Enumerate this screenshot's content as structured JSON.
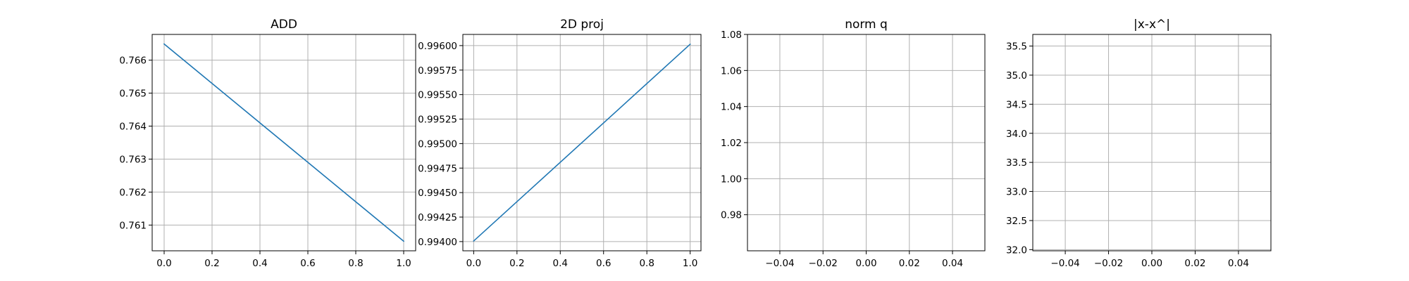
{
  "colors": {
    "series": "#1f77b4"
  },
  "chart_data": [
    {
      "type": "line",
      "title": "ADD",
      "xlabel": "",
      "ylabel": "",
      "grid": true,
      "xlim": [
        -0.05,
        1.05
      ],
      "ylim": [
        0.76022,
        0.76678
      ],
      "xticks": [
        0.0,
        0.2,
        0.4,
        0.6,
        0.8,
        1.0
      ],
      "xtick_labels": [
        "0.0",
        "0.2",
        "0.4",
        "0.6",
        "0.8",
        "1.0"
      ],
      "yticks": [
        0.761,
        0.762,
        0.763,
        0.764,
        0.765,
        0.766
      ],
      "ytick_labels": [
        "0.761",
        "0.762",
        "0.763",
        "0.764",
        "0.765",
        "0.766"
      ],
      "series": [
        {
          "x": [
            0,
            1
          ],
          "y": [
            0.76649,
            0.76051
          ]
        }
      ]
    },
    {
      "type": "line",
      "title": "2D proj",
      "xlabel": "",
      "ylabel": "",
      "grid": true,
      "xlim": [
        -0.05,
        1.05
      ],
      "ylim": [
        0.993906,
        0.996114
      ],
      "xticks": [
        0.0,
        0.2,
        0.4,
        0.6,
        0.8,
        1.0
      ],
      "xtick_labels": [
        "0.0",
        "0.2",
        "0.4",
        "0.6",
        "0.8",
        "1.0"
      ],
      "yticks": [
        0.994,
        0.99425,
        0.9945,
        0.99475,
        0.995,
        0.99525,
        0.9955,
        0.99575,
        0.996
      ],
      "ytick_labels": [
        "0.99400",
        "0.99425",
        "0.99450",
        "0.99475",
        "0.99500",
        "0.99525",
        "0.99550",
        "0.99575",
        "0.99600"
      ],
      "series": [
        {
          "x": [
            0,
            1
          ],
          "y": [
            0.994006,
            0.996014
          ]
        }
      ]
    },
    {
      "type": "line",
      "title": "norm q",
      "xlabel": "",
      "ylabel": "",
      "grid": true,
      "xlim": [
        -0.055,
        0.055
      ],
      "ylim": [
        0.96,
        1.08
      ],
      "xticks": [
        -0.04,
        -0.02,
        0.0,
        0.02,
        0.04
      ],
      "xtick_labels": [
        "−0.04",
        "−0.02",
        "0.00",
        "0.02",
        "0.04"
      ],
      "yticks": [
        0.98,
        1.0,
        1.02,
        1.04,
        1.06,
        1.08
      ],
      "ytick_labels": [
        "0.98",
        "1.00",
        "1.02",
        "1.04",
        "1.06",
        "1.08"
      ],
      "series": []
    },
    {
      "type": "line",
      "title": "|x-x^|",
      "xlabel": "",
      "ylabel": "",
      "grid": true,
      "xlim": [
        -0.055,
        0.055
      ],
      "ylim": [
        31.98,
        35.7
      ],
      "xticks": [
        -0.04,
        -0.02,
        0.0,
        0.02,
        0.04
      ],
      "xtick_labels": [
        "−0.04",
        "−0.02",
        "0.00",
        "0.02",
        "0.04"
      ],
      "yticks": [
        32.0,
        32.5,
        33.0,
        33.5,
        34.0,
        34.5,
        35.0,
        35.5
      ],
      "ytick_labels": [
        "32.0",
        "32.5",
        "33.0",
        "33.5",
        "34.0",
        "34.5",
        "35.0",
        "35.5"
      ],
      "series": []
    }
  ]
}
